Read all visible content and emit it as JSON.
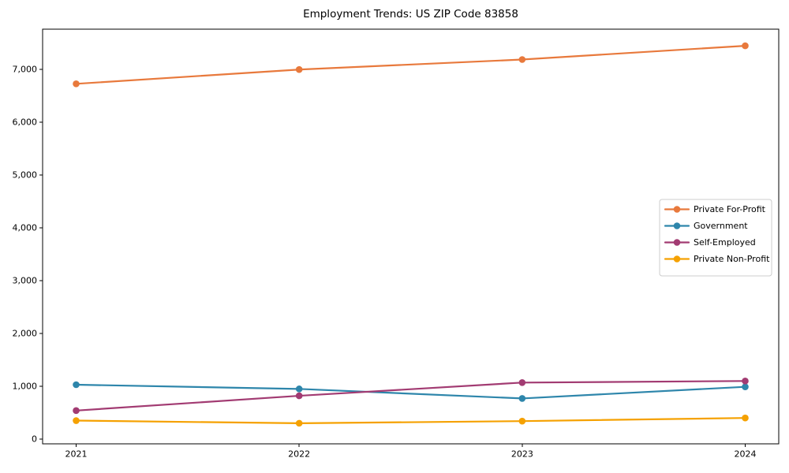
{
  "figure": {
    "background": "#ffffff"
  },
  "chart_data": {
    "type": "line",
    "title": "Employment Trends: US ZIP Code 83858",
    "xlabel": "",
    "ylabel": "",
    "x": [
      2021,
      2022,
      2023,
      2024
    ],
    "x_tick_labels": [
      "2021",
      "2022",
      "2023",
      "2024"
    ],
    "yticks": [
      0,
      1000,
      2000,
      3000,
      4000,
      5000,
      6000,
      7000
    ],
    "ytick_labels": [
      "0",
      "1,000",
      "2,000",
      "3,000",
      "4,000",
      "5,000",
      "6,000",
      "7,000"
    ],
    "ylim": [
      -90,
      7765
    ],
    "grid": false,
    "legend_position": "center-right",
    "series": [
      {
        "name": "Private For-Profit",
        "color": "#E8793C",
        "values": [
          6730,
          7000,
          7190,
          7450
        ]
      },
      {
        "name": "Government",
        "color": "#2E86AB",
        "values": [
          1030,
          950,
          770,
          990
        ]
      },
      {
        "name": "Self-Employed",
        "color": "#A23B72",
        "values": [
          540,
          820,
          1070,
          1100
        ]
      },
      {
        "name": "Private Non-Profit",
        "color": "#F5A101",
        "values": [
          350,
          300,
          340,
          400
        ]
      }
    ],
    "style": {
      "axis_color": "#000000",
      "legend_border_color": "#cccccc",
      "legend_background": "#ffffff"
    }
  }
}
